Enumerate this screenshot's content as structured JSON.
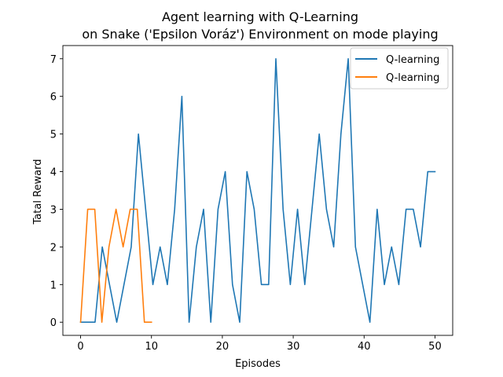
{
  "chart_data": {
    "type": "line",
    "title_line1": "Agent learning with Q-Learning",
    "title_line2": "on Snake ('Epsilon Voráz') Environment on mode playing",
    "xlabel": "Episodes",
    "ylabel": "Tatal Reward",
    "xlim": [
      -2.5,
      52.5
    ],
    "ylim": [
      -0.35,
      7.35
    ],
    "xticks": [
      0,
      10,
      20,
      30,
      40,
      50
    ],
    "yticks": [
      0,
      1,
      2,
      3,
      4,
      5,
      6,
      7
    ],
    "grid": false,
    "legend_position": "top-right",
    "series": [
      {
        "name": "Q-learning",
        "color": "#1f77b4",
        "x": [
          0,
          1.02,
          2.04,
          3.06,
          4.08,
          5.1,
          6.12,
          7.14,
          8.16,
          9.18,
          10.2,
          11.22,
          12.24,
          13.27,
          14.29,
          15.31,
          16.33,
          17.35,
          18.37,
          19.39,
          20.41,
          21.43,
          22.45,
          23.47,
          24.49,
          25.51,
          26.53,
          27.55,
          28.57,
          29.59,
          30.61,
          31.63,
          32.65,
          33.67,
          34.69,
          35.71,
          36.73,
          37.76,
          38.78,
          39.8,
          40.82,
          41.84,
          42.86,
          43.88,
          44.9,
          45.92,
          46.94,
          47.96,
          48.98,
          50
        ],
        "values": [
          0,
          0,
          0,
          2,
          1,
          0,
          1,
          2,
          5,
          3,
          1,
          2,
          1,
          3,
          6,
          0,
          2,
          3,
          0,
          3,
          4,
          1,
          0,
          4,
          3,
          1,
          1,
          7,
          3,
          1,
          3,
          1,
          3,
          5,
          3,
          2,
          5,
          7,
          2,
          1,
          0,
          3,
          1,
          2,
          1,
          3,
          3,
          2,
          4,
          4
        ]
      },
      {
        "name": "Q-learning",
        "color": "#ff7f0e",
        "x": [
          0,
          1,
          2,
          3,
          4,
          5,
          6,
          7,
          8,
          9,
          10
        ],
        "values": [
          0,
          3,
          3,
          0,
          2,
          3,
          2,
          3,
          3,
          0,
          0
        ]
      }
    ]
  },
  "colors": {
    "axis": "#000000",
    "background": "#ffffff",
    "legend_border": "#cccccc"
  }
}
